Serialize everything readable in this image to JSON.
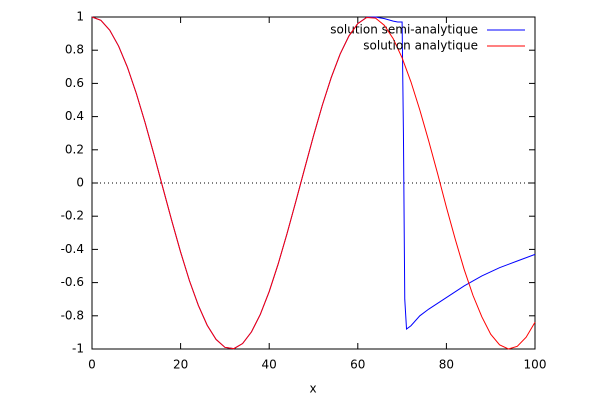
{
  "chart_data": {
    "type": "line",
    "xlabel": "x",
    "xlim": [
      0,
      100
    ],
    "xticks": [
      0,
      20,
      40,
      60,
      80,
      100
    ],
    "ylim": [
      -1,
      1
    ],
    "yticks": [
      -1,
      -0.8,
      -0.6,
      -0.4,
      -0.2,
      0,
      0.2,
      0.4,
      0.6,
      0.8,
      1
    ],
    "zero_axis": true,
    "legend": "top-right",
    "series": [
      {
        "name": "solution semi-analytique",
        "color": "#0000ff",
        "x": [
          0,
          2,
          4,
          6,
          8,
          10,
          12,
          14,
          16,
          18,
          20,
          22,
          24,
          26,
          28,
          30,
          32,
          34,
          36,
          38,
          40,
          42,
          44,
          46,
          48,
          50,
          52,
          54,
          56,
          58,
          60,
          62,
          64,
          66,
          68,
          69,
          70,
          70.3,
          70.6,
          71,
          72,
          74,
          76,
          80,
          84,
          88,
          92,
          96,
          100
        ],
        "values": [
          1,
          0.98,
          0.921,
          0.825,
          0.697,
          0.54,
          0.362,
          0.17,
          -0.029,
          -0.227,
          -0.416,
          -0.589,
          -0.737,
          -0.857,
          -0.942,
          -0.99,
          -0.998,
          -0.967,
          -0.897,
          -0.791,
          -0.654,
          -0.49,
          -0.307,
          -0.112,
          0.087,
          0.284,
          0.469,
          0.635,
          0.776,
          0.886,
          0.96,
          0.998,
          1,
          0.99,
          0.975,
          0.97,
          0.97,
          0.3,
          -0.7,
          -0.88,
          -0.86,
          -0.8,
          -0.76,
          -0.69,
          -0.62,
          -0.56,
          -0.51,
          -0.47,
          -0.43
        ]
      },
      {
        "name": "solution analytique",
        "color": "#ff0000",
        "x": [
          0,
          2,
          4,
          6,
          8,
          10,
          12,
          14,
          16,
          18,
          20,
          22,
          24,
          26,
          28,
          30,
          32,
          34,
          36,
          38,
          40,
          42,
          44,
          46,
          48,
          50,
          52,
          54,
          56,
          58,
          60,
          62,
          64,
          66,
          68,
          70,
          72,
          74,
          76,
          78,
          80,
          82,
          84,
          86,
          88,
          90,
          92,
          94,
          96,
          98,
          100
        ],
        "values": [
          1,
          0.98,
          0.921,
          0.825,
          0.697,
          0.54,
          0.362,
          0.17,
          -0.029,
          -0.227,
          -0.416,
          -0.589,
          -0.737,
          -0.857,
          -0.942,
          -0.99,
          -0.998,
          -0.967,
          -0.897,
          -0.791,
          -0.654,
          -0.49,
          -0.307,
          -0.112,
          0.087,
          0.284,
          0.469,
          0.635,
          0.776,
          0.886,
          0.96,
          0.997,
          0.993,
          0.95,
          0.869,
          0.754,
          0.609,
          0.44,
          0.254,
          0.058,
          -0.146,
          -0.339,
          -0.52,
          -0.677,
          -0.806,
          -0.911,
          -0.975,
          -1,
          -0.984,
          -0.929,
          -0.839
        ]
      }
    ]
  }
}
